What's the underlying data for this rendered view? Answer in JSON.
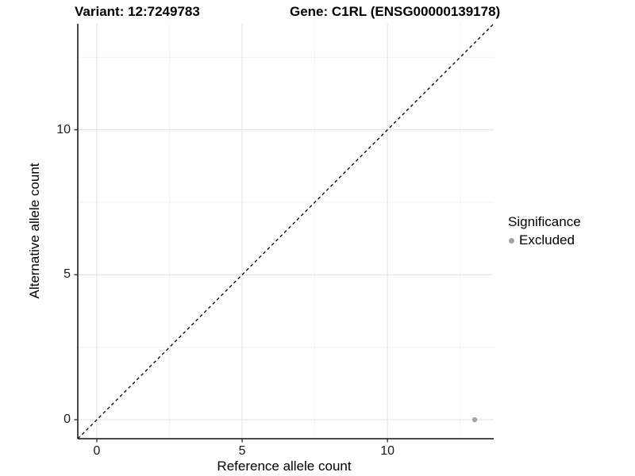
{
  "header": {
    "variant_title": "Variant: 12:7249783",
    "gene_title": "Gene: C1RL (ENSG00000139178)"
  },
  "legend": {
    "title": "Significance",
    "items": [
      {
        "label": "Excluded",
        "color": "#a4a4a4",
        "marker": "circle-icon"
      }
    ]
  },
  "chart_data": {
    "type": "scatter",
    "title": "Variant: 12:7249783   Gene: C1RL (ENSG00000139178)",
    "xlabel": "Reference allele count",
    "ylabel": "Alternative allele count",
    "xlim": [
      -0.655,
      13.655
    ],
    "ylim": [
      -0.655,
      13.655
    ],
    "x_major_ticks": [
      0,
      5,
      10
    ],
    "y_major_ticks": [
      0,
      5,
      10
    ],
    "x_minor_ticks": [
      2.5,
      7.5,
      12.5
    ],
    "y_minor_ticks": [
      2.5,
      7.5,
      12.5
    ],
    "grid": "major and minor horizontal+vertical, light grey on white",
    "legend_position": "right-middle",
    "series": [
      {
        "name": "Excluded",
        "color": "#a4a4a4",
        "marker_radius": 3.2,
        "points": [
          {
            "x": 13,
            "y": 0
          }
        ]
      }
    ],
    "reference_line": {
      "type": "identity y=x",
      "style": "dashed",
      "color": "#000000",
      "from": [
        -0.655,
        -0.655
      ],
      "to": [
        13.655,
        13.655
      ]
    }
  },
  "colors": {
    "background": "#ffffff",
    "axis_line": "#333333",
    "tick_mark": "#333333",
    "tick_label": "#1a1a1a",
    "grid_major": "#e4e4e4",
    "grid_minor": "#f1f1f1",
    "point": "#a4a4a4",
    "title_text": "#000000"
  }
}
